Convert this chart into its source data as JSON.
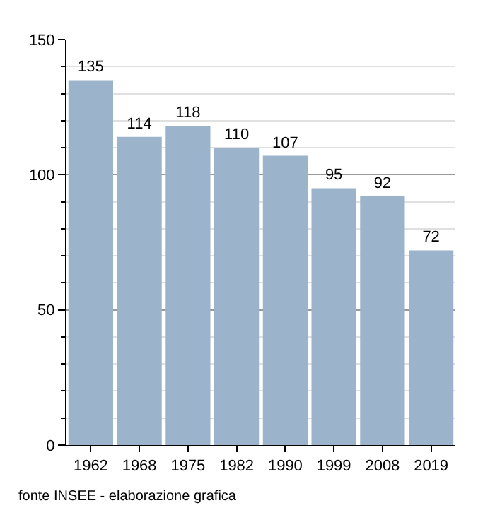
{
  "chart_data": {
    "type": "bar",
    "categories": [
      "1962",
      "1968",
      "1975",
      "1982",
      "1990",
      "1999",
      "2008",
      "2019"
    ],
    "values": [
      135,
      114,
      118,
      110,
      107,
      95,
      92,
      72
    ],
    "color": "#9bb4cc",
    "ylim": [
      0,
      150
    ],
    "yticks": [
      0,
      50,
      100,
      150
    ],
    "grid": "y",
    "data_labels": true,
    "annotations": [
      "fonte INSEE - elaborazione grafica"
    ]
  }
}
